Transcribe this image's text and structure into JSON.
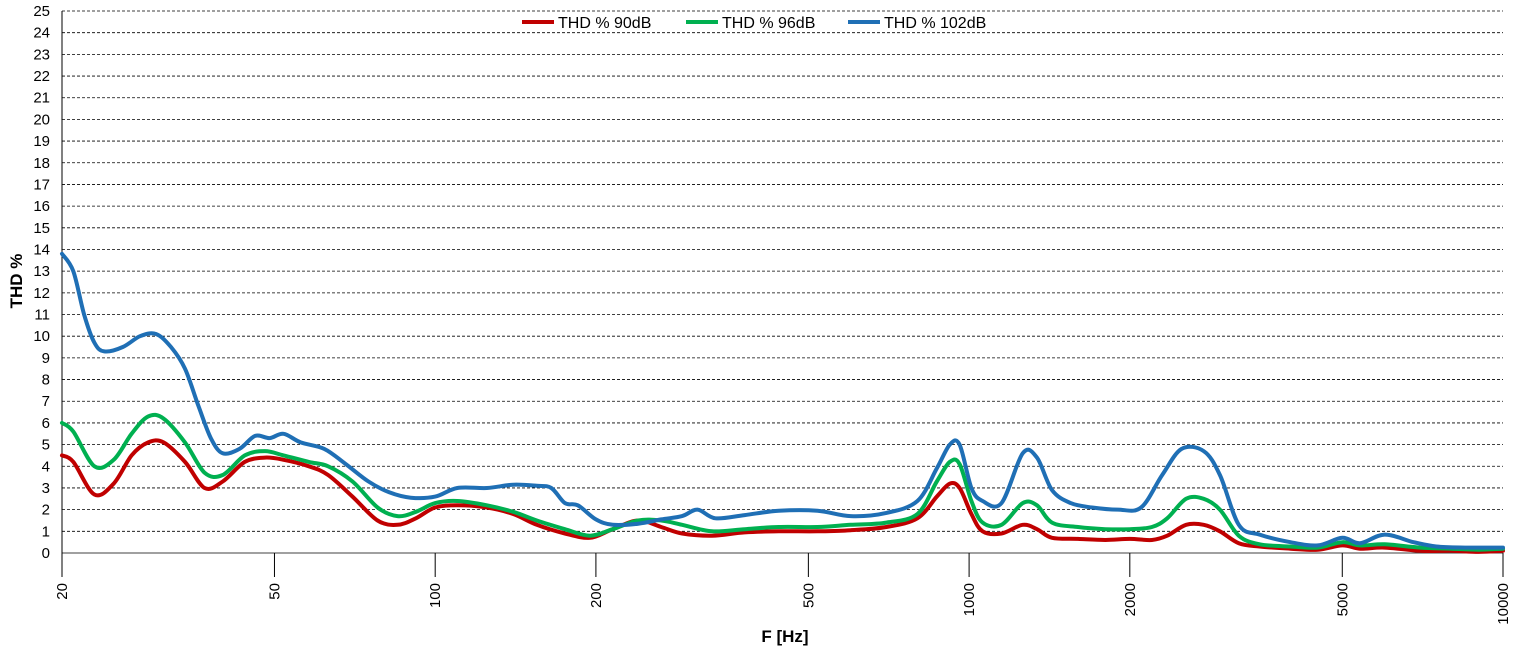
{
  "chart_data": {
    "type": "line",
    "title": "",
    "xlabel": "F [Hz]",
    "ylabel": "THD %",
    "x_scale": "log",
    "xlim": [
      20,
      10000
    ],
    "ylim": [
      0,
      25
    ],
    "grid": "horizontal dashed",
    "legend_position": "top-center",
    "x_ticks": [
      20,
      50,
      100,
      200,
      500,
      1000,
      2000,
      5000,
      10000
    ],
    "y_ticks": [
      0,
      1,
      2,
      3,
      4,
      5,
      6,
      7,
      8,
      9,
      10,
      11,
      12,
      13,
      14,
      15,
      16,
      17,
      18,
      19,
      20,
      21,
      22,
      23,
      24,
      25
    ],
    "series": [
      {
        "name": "THD % 90dB",
        "color": "#c00000",
        "points": [
          [
            20,
            4.5
          ],
          [
            21,
            4.2
          ],
          [
            23,
            2.7
          ],
          [
            25,
            3.2
          ],
          [
            27,
            4.5
          ],
          [
            29,
            5.1
          ],
          [
            31,
            5.1
          ],
          [
            34,
            4.2
          ],
          [
            37,
            3.0
          ],
          [
            40,
            3.3
          ],
          [
            44,
            4.2
          ],
          [
            48,
            4.4
          ],
          [
            52,
            4.3
          ],
          [
            58,
            4.0
          ],
          [
            63,
            3.6
          ],
          [
            70,
            2.6
          ],
          [
            78,
            1.5
          ],
          [
            85,
            1.3
          ],
          [
            92,
            1.6
          ],
          [
            100,
            2.1
          ],
          [
            110,
            2.2
          ],
          [
            125,
            2.1
          ],
          [
            140,
            1.8
          ],
          [
            155,
            1.3
          ],
          [
            175,
            0.9
          ],
          [
            195,
            0.7
          ],
          [
            215,
            1.1
          ],
          [
            240,
            1.5
          ],
          [
            265,
            1.2
          ],
          [
            290,
            0.9
          ],
          [
            330,
            0.8
          ],
          [
            380,
            0.95
          ],
          [
            440,
            1.0
          ],
          [
            520,
            1.0
          ],
          [
            600,
            1.05
          ],
          [
            700,
            1.2
          ],
          [
            800,
            1.6
          ],
          [
            870,
            2.6
          ],
          [
            920,
            3.2
          ],
          [
            960,
            3.0
          ],
          [
            1010,
            1.8
          ],
          [
            1060,
            1.0
          ],
          [
            1150,
            0.9
          ],
          [
            1260,
            1.3
          ],
          [
            1340,
            1.1
          ],
          [
            1430,
            0.7
          ],
          [
            1600,
            0.65
          ],
          [
            1800,
            0.6
          ],
          [
            2000,
            0.65
          ],
          [
            2200,
            0.6
          ],
          [
            2350,
            0.8
          ],
          [
            2550,
            1.3
          ],
          [
            2750,
            1.3
          ],
          [
            2950,
            1.0
          ],
          [
            3200,
            0.45
          ],
          [
            3500,
            0.3
          ],
          [
            4000,
            0.2
          ],
          [
            4500,
            0.15
          ],
          [
            5000,
            0.35
          ],
          [
            5400,
            0.2
          ],
          [
            6000,
            0.25
          ],
          [
            7000,
            0.1
          ],
          [
            8000,
            0.1
          ],
          [
            9000,
            0.05
          ],
          [
            10000,
            0.1
          ]
        ]
      },
      {
        "name": "THD % 96dB",
        "color": "#00b050",
        "points": [
          [
            20,
            6.0
          ],
          [
            21,
            5.6
          ],
          [
            23,
            4.0
          ],
          [
            25,
            4.3
          ],
          [
            27,
            5.5
          ],
          [
            29,
            6.3
          ],
          [
            31,
            6.2
          ],
          [
            34,
            5.1
          ],
          [
            37,
            3.7
          ],
          [
            40,
            3.6
          ],
          [
            44,
            4.5
          ],
          [
            48,
            4.7
          ],
          [
            52,
            4.5
          ],
          [
            58,
            4.2
          ],
          [
            63,
            4.0
          ],
          [
            70,
            3.3
          ],
          [
            78,
            2.1
          ],
          [
            85,
            1.7
          ],
          [
            92,
            1.9
          ],
          [
            100,
            2.3
          ],
          [
            110,
            2.4
          ],
          [
            125,
            2.2
          ],
          [
            140,
            1.9
          ],
          [
            155,
            1.5
          ],
          [
            175,
            1.1
          ],
          [
            195,
            0.8
          ],
          [
            215,
            1.1
          ],
          [
            240,
            1.5
          ],
          [
            265,
            1.5
          ],
          [
            290,
            1.3
          ],
          [
            330,
            1.0
          ],
          [
            380,
            1.1
          ],
          [
            440,
            1.2
          ],
          [
            520,
            1.2
          ],
          [
            600,
            1.3
          ],
          [
            700,
            1.4
          ],
          [
            800,
            1.8
          ],
          [
            870,
            3.3
          ],
          [
            920,
            4.2
          ],
          [
            960,
            4.1
          ],
          [
            1010,
            2.4
          ],
          [
            1060,
            1.4
          ],
          [
            1150,
            1.3
          ],
          [
            1260,
            2.3
          ],
          [
            1340,
            2.2
          ],
          [
            1430,
            1.4
          ],
          [
            1600,
            1.2
          ],
          [
            1800,
            1.1
          ],
          [
            2000,
            1.1
          ],
          [
            2200,
            1.2
          ],
          [
            2350,
            1.6
          ],
          [
            2550,
            2.5
          ],
          [
            2750,
            2.5
          ],
          [
            2950,
            2.0
          ],
          [
            3200,
            0.8
          ],
          [
            3500,
            0.4
          ],
          [
            4000,
            0.3
          ],
          [
            4500,
            0.25
          ],
          [
            5000,
            0.5
          ],
          [
            5400,
            0.35
          ],
          [
            6000,
            0.4
          ],
          [
            7000,
            0.25
          ],
          [
            8000,
            0.2
          ],
          [
            9000,
            0.15
          ],
          [
            10000,
            0.2
          ]
        ]
      },
      {
        "name": "THD % 102dB",
        "color": "#1f6fb5",
        "points": [
          [
            20,
            13.8
          ],
          [
            21,
            13.0
          ],
          [
            22,
            11.0
          ],
          [
            23,
            9.7
          ],
          [
            24,
            9.3
          ],
          [
            26,
            9.5
          ],
          [
            28,
            10.0
          ],
          [
            30,
            10.1
          ],
          [
            32,
            9.5
          ],
          [
            34,
            8.5
          ],
          [
            36,
            6.8
          ],
          [
            38,
            5.3
          ],
          [
            40,
            4.6
          ],
          [
            43,
            4.8
          ],
          [
            46,
            5.4
          ],
          [
            49,
            5.3
          ],
          [
            52,
            5.5
          ],
          [
            56,
            5.1
          ],
          [
            62,
            4.8
          ],
          [
            68,
            4.1
          ],
          [
            75,
            3.3
          ],
          [
            82,
            2.8
          ],
          [
            90,
            2.55
          ],
          [
            100,
            2.6
          ],
          [
            110,
            3.0
          ],
          [
            125,
            3.0
          ],
          [
            140,
            3.15
          ],
          [
            155,
            3.1
          ],
          [
            165,
            3.0
          ],
          [
            175,
            2.3
          ],
          [
            185,
            2.2
          ],
          [
            200,
            1.55
          ],
          [
            215,
            1.3
          ],
          [
            240,
            1.35
          ],
          [
            265,
            1.55
          ],
          [
            290,
            1.7
          ],
          [
            310,
            2.0
          ],
          [
            335,
            1.6
          ],
          [
            380,
            1.75
          ],
          [
            440,
            1.95
          ],
          [
            520,
            1.95
          ],
          [
            600,
            1.7
          ],
          [
            700,
            1.85
          ],
          [
            800,
            2.4
          ],
          [
            870,
            3.9
          ],
          [
            920,
            5.0
          ],
          [
            960,
            5.0
          ],
          [
            1010,
            3.0
          ],
          [
            1060,
            2.4
          ],
          [
            1150,
            2.3
          ],
          [
            1260,
            4.6
          ],
          [
            1340,
            4.4
          ],
          [
            1430,
            2.9
          ],
          [
            1550,
            2.3
          ],
          [
            1700,
            2.1
          ],
          [
            1900,
            2.0
          ],
          [
            2100,
            2.1
          ],
          [
            2300,
            3.6
          ],
          [
            2500,
            4.8
          ],
          [
            2750,
            4.7
          ],
          [
            2950,
            3.6
          ],
          [
            3200,
            1.3
          ],
          [
            3500,
            0.85
          ],
          [
            4000,
            0.5
          ],
          [
            4500,
            0.35
          ],
          [
            5000,
            0.7
          ],
          [
            5400,
            0.45
          ],
          [
            6000,
            0.85
          ],
          [
            6800,
            0.5
          ],
          [
            7500,
            0.3
          ],
          [
            8500,
            0.25
          ],
          [
            10000,
            0.25
          ]
        ]
      }
    ]
  }
}
